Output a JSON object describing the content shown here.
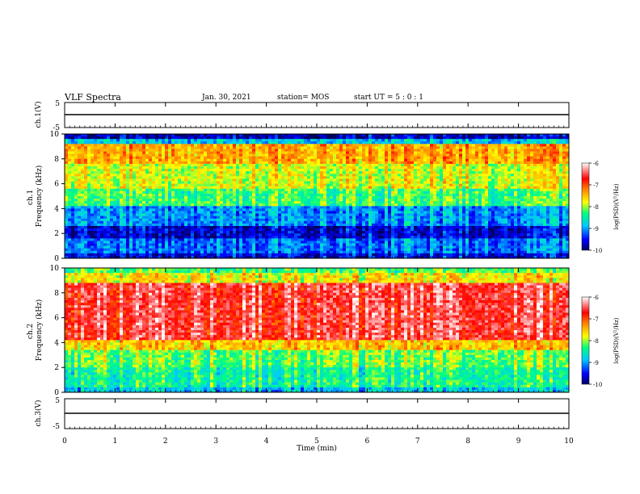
{
  "header": {
    "title": "VLF Spectra",
    "date": "Jan. 30, 2021",
    "station": "station= MOS",
    "start": "start  UT =   5 : 0  : 1"
  },
  "colors": {
    "scale": [
      "#000080",
      "#0000ff",
      "#00c8ff",
      "#00ff80",
      "#ffff00",
      "#ff8000",
      "#ff0000",
      "#ffffff"
    ]
  },
  "chart_data": [
    {
      "type": "line",
      "name": "ch1-waveform",
      "ylabel": "ch.1(V)",
      "ylim": [
        -5,
        5
      ],
      "yticks": [
        "5",
        "-5"
      ],
      "x": [
        0,
        10
      ],
      "y": [
        0,
        0
      ]
    },
    {
      "type": "heatmap",
      "name": "ch1-spectrogram",
      "ylabel": "ch.1\nFrequency  (kHz)",
      "ylim": [
        0,
        10
      ],
      "yticks": [
        "0",
        "2",
        "4",
        "6",
        "8",
        "10"
      ],
      "colorbar": {
        "label": "log(PSD)(V²/Hz)",
        "ticks": [
          "-6",
          "-7",
          "-8",
          "-9",
          "-10"
        ],
        "range": [
          -10,
          -6
        ]
      }
    },
    {
      "type": "heatmap",
      "name": "ch2-spectrogram",
      "ylabel": "ch.2\nFrequency  (kHz)",
      "ylim": [
        0,
        10
      ],
      "yticks": [
        "0",
        "2",
        "4",
        "6",
        "8",
        "10"
      ],
      "colorbar": {
        "label": "log(PSD)(V²/Hz)",
        "ticks": [
          "-6",
          "-7",
          "-8",
          "-9",
          "-10"
        ],
        "range": [
          -10,
          -6
        ]
      }
    },
    {
      "type": "line",
      "name": "ch3-waveform",
      "ylabel": "ch.3(V)",
      "ylim": [
        -5,
        5
      ],
      "yticks": [
        "5",
        "-5"
      ],
      "x": [
        0,
        10
      ],
      "y": [
        0,
        0
      ]
    }
  ],
  "xaxis": {
    "label": "Time  (min)",
    "range": [
      0,
      10
    ],
    "ticks": [
      "0",
      "1",
      "2",
      "3",
      "4",
      "5",
      "6",
      "7",
      "8",
      "9",
      "10"
    ]
  }
}
